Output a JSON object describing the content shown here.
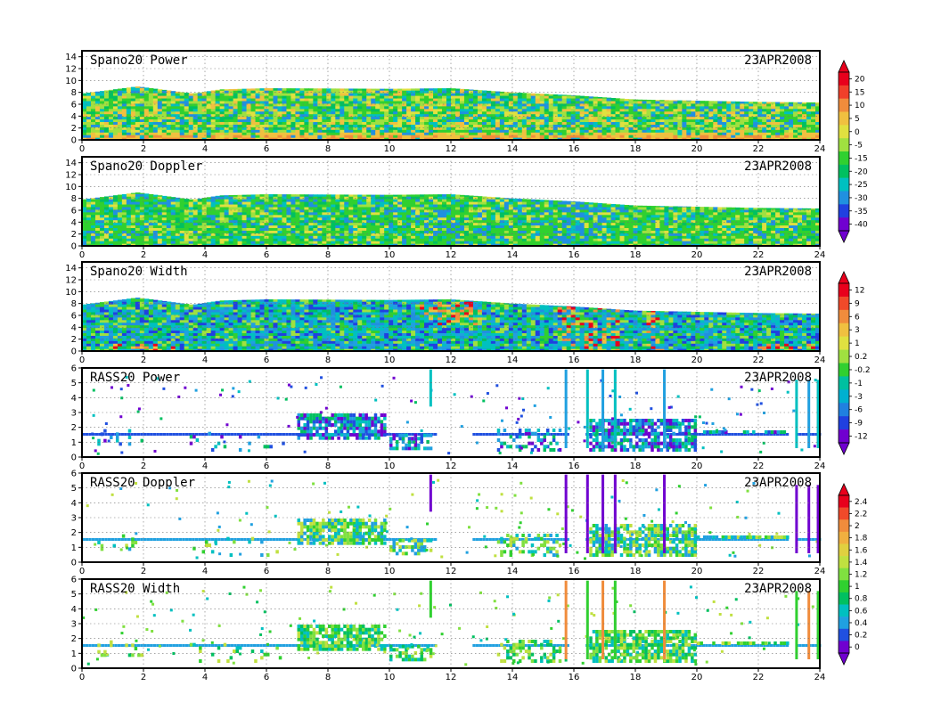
{
  "figure": {
    "panels": [
      {
        "title": "Spano20  Power",
        "date": "23APR2008",
        "kind": "spano",
        "var": "power",
        "colorbar": "power"
      },
      {
        "title": "Spano20  Doppler",
        "date": "23APR2008",
        "kind": "spano",
        "var": "doppler",
        "colorbar": "power"
      },
      {
        "title": "Spano20  Width",
        "date": "23APR2008",
        "kind": "spano",
        "var": "width",
        "colorbar": "width"
      },
      {
        "title": "RASS20  Power",
        "date": "23APR2008",
        "kind": "rass",
        "var": "power",
        "colorbar": "width"
      },
      {
        "title": "RASS20  Doppler",
        "date": "23APR2008",
        "kind": "rass",
        "var": "doppler",
        "colorbar": "doppler"
      },
      {
        "title": "RASS20  Width",
        "date": "23APR2008",
        "kind": "rass",
        "var": "width",
        "colorbar": "doppler"
      }
    ],
    "colorbars": {
      "power": {
        "labels": [
          "20",
          "15",
          "10",
          "5",
          "0",
          "-5",
          "-15",
          "-20",
          "-25",
          "-30",
          "-35",
          "-40"
        ],
        "colors": [
          "#e8001c",
          "#f0402a",
          "#f08c3c",
          "#f0c040",
          "#e0e040",
          "#a0e040",
          "#30d030",
          "#00c060",
          "#00c0c0",
          "#2090e0",
          "#2040e0",
          "#7000d0"
        ]
      },
      "width": {
        "labels": [
          "12",
          "9",
          "6",
          "3",
          "1",
          "0.2",
          "-0.2",
          "-1",
          "-3",
          "-6",
          "-9",
          "-12"
        ],
        "colors": [
          "#e8001c",
          "#f04a2a",
          "#f08c3c",
          "#f0c040",
          "#e0e040",
          "#a0e040",
          "#30d030",
          "#00c0a0",
          "#00b0d0",
          "#2080e0",
          "#2040e0",
          "#7000d0"
        ]
      },
      "doppler": {
        "labels": [
          "2.4",
          "2.2",
          "2",
          "1.8",
          "1.6",
          "1.4",
          "1.2",
          "1",
          "0.8",
          "0.6",
          "0.4",
          "0.2",
          "0"
        ],
        "colors": [
          "#e8001c",
          "#f04a2a",
          "#f08c3c",
          "#f0b040",
          "#e0d040",
          "#c0e040",
          "#80e040",
          "#30d030",
          "#00c060",
          "#00c0c0",
          "#20a0e0",
          "#2050e0",
          "#7000d0"
        ]
      }
    }
  },
  "chart_data": [
    {
      "type": "heatmap",
      "title": "Spano20  Power",
      "date": "23APR2008",
      "x": {
        "ticks": [
          0,
          2,
          4,
          6,
          8,
          10,
          12,
          14,
          16,
          18,
          20,
          22,
          24
        ],
        "range": [
          0,
          24
        ]
      },
      "y": {
        "ticks": [
          0,
          2,
          4,
          6,
          8,
          10,
          12,
          14
        ],
        "range": [
          0,
          15
        ]
      },
      "data_top_height": [
        [
          0,
          7.8
        ],
        [
          1.8,
          9.0
        ],
        [
          3.6,
          7.8
        ],
        [
          4.5,
          8.5
        ],
        [
          6,
          8.7
        ],
        [
          10,
          8.6
        ],
        [
          12,
          8.7
        ],
        [
          14,
          8.0
        ],
        [
          16,
          7.5
        ],
        [
          18,
          6.8
        ],
        [
          20,
          6.6
        ],
        [
          22,
          6.4
        ],
        [
          24,
          6.3
        ]
      ],
      "grid": true
    },
    {
      "type": "heatmap",
      "title": "Spano20  Doppler",
      "date": "23APR2008",
      "x": {
        "ticks": [
          0,
          2,
          4,
          6,
          8,
          10,
          12,
          14,
          16,
          18,
          20,
          22,
          24
        ],
        "range": [
          0,
          24
        ]
      },
      "y": {
        "ticks": [
          0,
          2,
          4,
          6,
          8,
          10,
          12,
          14
        ],
        "range": [
          0,
          15
        ]
      },
      "data_top_height": [
        [
          0,
          7.8
        ],
        [
          1.8,
          9.0
        ],
        [
          3.6,
          7.8
        ],
        [
          4.5,
          8.5
        ],
        [
          6,
          8.7
        ],
        [
          10,
          8.6
        ],
        [
          12,
          8.7
        ],
        [
          14,
          8.0
        ],
        [
          16,
          7.5
        ],
        [
          18,
          6.8
        ],
        [
          20,
          6.6
        ],
        [
          22,
          6.4
        ],
        [
          24,
          6.3
        ]
      ],
      "grid": true
    },
    {
      "type": "heatmap",
      "title": "Spano20  Width",
      "date": "23APR2008",
      "x": {
        "ticks": [
          0,
          2,
          4,
          6,
          8,
          10,
          12,
          14,
          16,
          18,
          20,
          22,
          24
        ],
        "range": [
          0,
          24
        ]
      },
      "y": {
        "ticks": [
          0,
          2,
          4,
          6,
          8,
          10,
          12,
          14
        ],
        "range": [
          0,
          15
        ]
      },
      "data_top_height": [
        [
          0,
          7.8
        ],
        [
          1.8,
          9.0
        ],
        [
          3.6,
          7.8
        ],
        [
          4.5,
          8.5
        ],
        [
          6,
          8.7
        ],
        [
          10,
          8.6
        ],
        [
          12,
          8.7
        ],
        [
          14,
          8.0
        ],
        [
          16,
          7.5
        ],
        [
          18,
          6.8
        ],
        [
          20,
          6.6
        ],
        [
          22,
          6.4
        ],
        [
          24,
          6.3
        ]
      ],
      "grid": true
    },
    {
      "type": "heatmap",
      "title": "RASS20  Power",
      "date": "23APR2008",
      "x": {
        "ticks": [
          0,
          2,
          4,
          6,
          8,
          10,
          12,
          14,
          16,
          18,
          20,
          22,
          24
        ],
        "range": [
          0,
          24
        ]
      },
      "y": {
        "ticks": [
          0,
          1,
          2,
          3,
          4,
          5,
          6
        ],
        "range": [
          0,
          6
        ]
      },
      "main_layer_height": 1.5,
      "grid": true
    },
    {
      "type": "heatmap",
      "title": "RASS20  Doppler",
      "date": "23APR2008",
      "x": {
        "ticks": [
          0,
          2,
          4,
          6,
          8,
          10,
          12,
          14,
          16,
          18,
          20,
          22,
          24
        ],
        "range": [
          0,
          24
        ]
      },
      "y": {
        "ticks": [
          0,
          1,
          2,
          3,
          4,
          5,
          6
        ],
        "range": [
          0,
          6
        ]
      },
      "main_layer_height": 1.5,
      "grid": true
    },
    {
      "type": "heatmap",
      "title": "RASS20  Width",
      "date": "23APR2008",
      "x": {
        "ticks": [
          0,
          2,
          4,
          6,
          8,
          10,
          12,
          14,
          16,
          18,
          20,
          22,
          24
        ],
        "range": [
          0,
          24
        ]
      },
      "y": {
        "ticks": [
          0,
          1,
          2,
          3,
          4,
          5,
          6
        ],
        "range": [
          0,
          6
        ]
      },
      "main_layer_height": 1.5,
      "grid": true
    }
  ]
}
